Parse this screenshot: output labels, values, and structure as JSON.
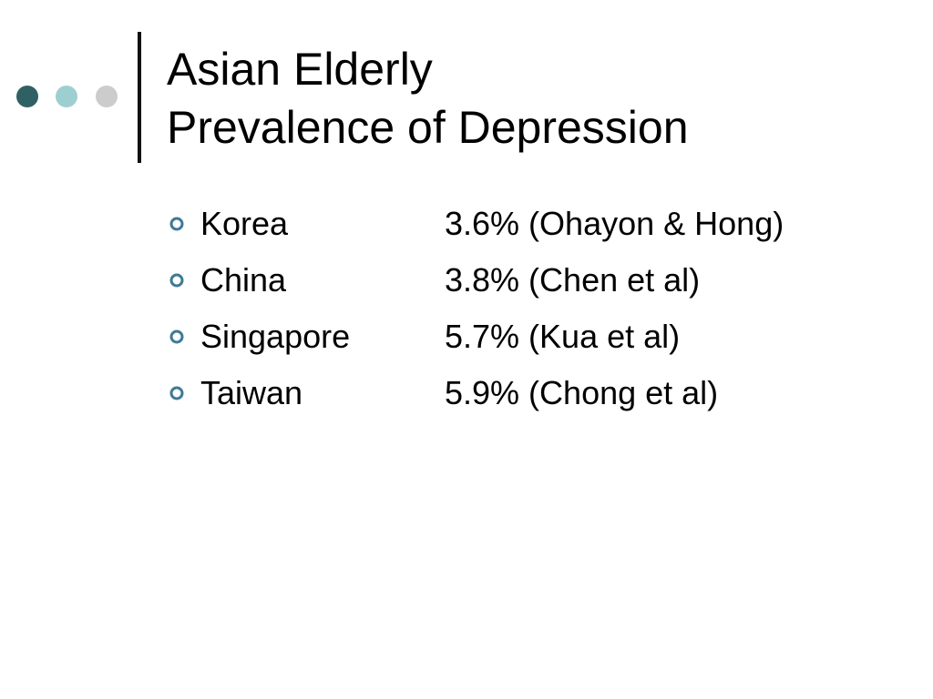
{
  "slide": {
    "title": [
      "Asian Elderly",
      "Prevalence of Depression"
    ],
    "items": [
      {
        "label": "Korea",
        "detail": "3.6% (Ohayon & Hong)"
      },
      {
        "label": "China",
        "detail": "3.8% (Chen et al)"
      },
      {
        "label": "Singapore",
        "detail": "5.7% (Kua et al)"
      },
      {
        "label": "Taiwan",
        "detail": "5.9% (Chong et al)"
      }
    ]
  }
}
